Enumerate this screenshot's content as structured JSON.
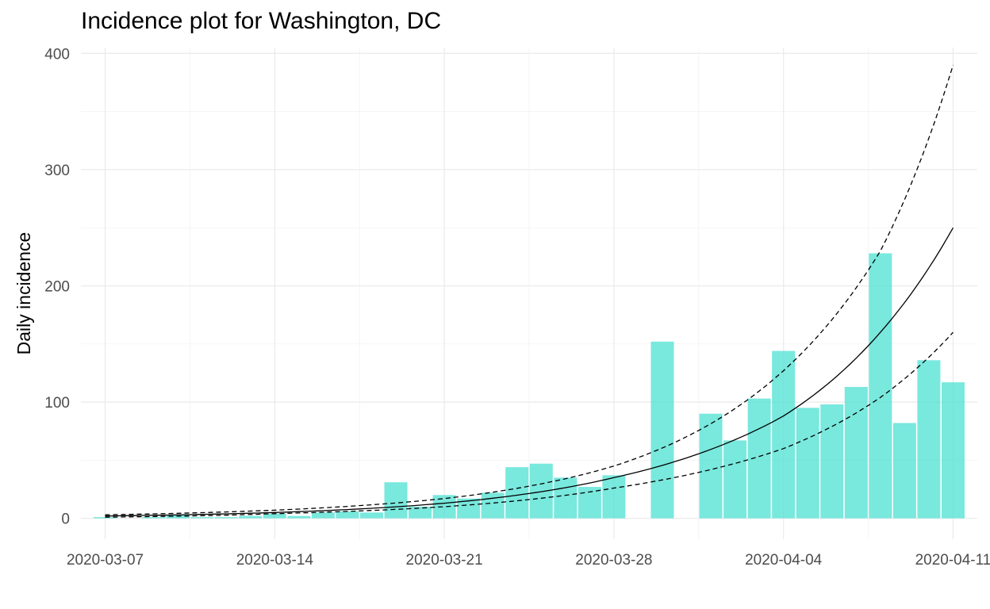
{
  "chart_data": {
    "type": "bar",
    "title": "Incidence plot for Washington, DC",
    "xlabel": "",
    "ylabel": "Daily incidence",
    "ylim": [
      -18,
      405
    ],
    "y_ticks": [
      0,
      100,
      200,
      300,
      400
    ],
    "x_range": [
      "2020-03-06",
      "2020-04-12"
    ],
    "x_ticks": [
      "2020-03-07",
      "2020-03-14",
      "2020-03-21",
      "2020-03-28",
      "2020-04-04",
      "2020-04-11"
    ],
    "grid": true,
    "colors": {
      "bar": "#4ce0d2",
      "fit": "#000000",
      "background": "#ffffff",
      "grid": "#ebebeb"
    },
    "dates": [
      "2020-03-07",
      "2020-03-08",
      "2020-03-09",
      "2020-03-10",
      "2020-03-11",
      "2020-03-12",
      "2020-03-13",
      "2020-03-14",
      "2020-03-15",
      "2020-03-16",
      "2020-03-17",
      "2020-03-18",
      "2020-03-19",
      "2020-03-20",
      "2020-03-21",
      "2020-03-22",
      "2020-03-23",
      "2020-03-24",
      "2020-03-25",
      "2020-03-26",
      "2020-03-27",
      "2020-03-28",
      "2020-03-29",
      "2020-03-30",
      "2020-03-31",
      "2020-04-01",
      "2020-04-02",
      "2020-04-03",
      "2020-04-04",
      "2020-04-05",
      "2020-04-06",
      "2020-04-07",
      "2020-04-08",
      "2020-04-09",
      "2020-04-10",
      "2020-04-11"
    ],
    "values": [
      1,
      0,
      1,
      3,
      1,
      1,
      2,
      4,
      2,
      5,
      6,
      5,
      31,
      10,
      20,
      17,
      22,
      44,
      47,
      35,
      27,
      37,
      0,
      152,
      0,
      90,
      67,
      103,
      144,
      95,
      98,
      113,
      228,
      82,
      136,
      117
    ],
    "series": [
      {
        "name": "fit",
        "style": "solid",
        "x": [
          "2020-03-07",
          "2020-03-14",
          "2020-03-21",
          "2020-03-28",
          "2020-04-04",
          "2020-04-08",
          "2020-04-11"
        ],
        "values": [
          2,
          5,
          13,
          35,
          88,
          160,
          250
        ]
      },
      {
        "name": "upper",
        "style": "dashed",
        "x": [
          "2020-03-07",
          "2020-03-14",
          "2020-03-21",
          "2020-03-28",
          "2020-04-04",
          "2020-04-08",
          "2020-04-11"
        ],
        "values": [
          3,
          7,
          17,
          45,
          127,
          230,
          390
        ]
      },
      {
        "name": "lower",
        "style": "dashed",
        "x": [
          "2020-03-07",
          "2020-03-14",
          "2020-03-21",
          "2020-03-28",
          "2020-04-04",
          "2020-04-08",
          "2020-04-11"
        ],
        "values": [
          1,
          4,
          10,
          26,
          60,
          104,
          160
        ]
      }
    ]
  }
}
